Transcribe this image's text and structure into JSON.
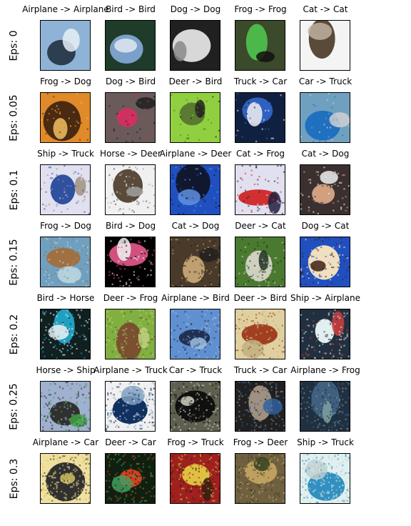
{
  "rows": [
    {
      "label": "Eps: 0",
      "cells": [
        {
          "title": "Airplane -> Airplane",
          "palette": [
            "#8fb3d6",
            "#2c3e50",
            "#e8eef5"
          ]
        },
        {
          "title": "Bird -> Bird",
          "palette": [
            "#1f3b2a",
            "#7ba0c9",
            "#e0e8f0"
          ]
        },
        {
          "title": "Dog -> Dog",
          "palette": [
            "#202020",
            "#d8d8d8",
            "#8a8a8a"
          ]
        },
        {
          "title": "Frog -> Frog",
          "palette": [
            "#3b4a2a",
            "#4db84a",
            "#101010"
          ]
        },
        {
          "title": "Cat -> Cat",
          "palette": [
            "#f4f4f4",
            "#5a4a3a",
            "#c0b0a0"
          ]
        }
      ]
    },
    {
      "label": "Eps: 0.05",
      "cells": [
        {
          "title": "Frog -> Dog",
          "palette": [
            "#e08a2a",
            "#4a2a10",
            "#f0c060"
          ]
        },
        {
          "title": "Dog -> Bird",
          "palette": [
            "#6a5a5a",
            "#d03060",
            "#202020"
          ]
        },
        {
          "title": "Deer -> Bird",
          "palette": [
            "#90d040",
            "#5a7a30",
            "#202020"
          ]
        },
        {
          "title": "Truck -> Car",
          "palette": [
            "#102040",
            "#3060c0",
            "#f0f0f0"
          ]
        },
        {
          "title": "Car -> Truck",
          "palette": [
            "#70a0c0",
            "#2070c0",
            "#d0d0d0"
          ]
        }
      ]
    },
    {
      "label": "Eps: 0.1",
      "cells": [
        {
          "title": "Ship -> Truck",
          "palette": [
            "#e0e0f0",
            "#3050a0",
            "#a09080"
          ]
        },
        {
          "title": "Horse -> Deer",
          "palette": [
            "#f0f0f0",
            "#5a4a3a",
            "#a0a0a0"
          ]
        },
        {
          "title": "Airplane -> Deer",
          "palette": [
            "#2050c0",
            "#101830",
            "#6090e0"
          ]
        },
        {
          "title": "Cat -> Frog",
          "palette": [
            "#e0e0f0",
            "#d03030",
            "#202040"
          ]
        },
        {
          "title": "Cat -> Dog",
          "palette": [
            "#3a3030",
            "#d0a080",
            "#f0f0f0"
          ]
        }
      ]
    },
    {
      "label": "Eps: 0.15",
      "cells": [
        {
          "title": "Frog -> Dog",
          "palette": [
            "#70a0c0",
            "#a07040",
            "#c0d8e0"
          ]
        },
        {
          "title": "Bird -> Dog",
          "palette": [
            "#000000",
            "#d05080",
            "#f0f0f0"
          ]
        },
        {
          "title": "Cat -> Dog",
          "palette": [
            "#4a3a2a",
            "#c0a070",
            "#202020"
          ]
        },
        {
          "title": "Deer -> Cat",
          "palette": [
            "#4a7a30",
            "#d0d0c0",
            "#203020"
          ]
        },
        {
          "title": "Dog -> Cat",
          "palette": [
            "#2050c0",
            "#f0e0c0",
            "#402010"
          ]
        }
      ]
    },
    {
      "label": "Eps: 0.2",
      "cells": [
        {
          "title": "Bird -> Horse",
          "palette": [
            "#102020",
            "#20a0c0",
            "#f0f0f0"
          ]
        },
        {
          "title": "Deer -> Frog",
          "palette": [
            "#80b040",
            "#7a5030",
            "#c0d080"
          ]
        },
        {
          "title": "Airplane -> Bird",
          "palette": [
            "#6090d0",
            "#203050",
            "#a0c0e0"
          ]
        },
        {
          "title": "Deer -> Bird",
          "palette": [
            "#e0d0a0",
            "#a04020",
            "#c0b080"
          ]
        },
        {
          "title": "Ship -> Airplane",
          "palette": [
            "#203040",
            "#e0f0f0",
            "#d04040"
          ]
        }
      ]
    },
    {
      "label": "Eps: 0.25",
      "cells": [
        {
          "title": "Horse -> Ship",
          "palette": [
            "#a0b0d0",
            "#303030",
            "#40a040"
          ]
        },
        {
          "title": "Airplane -> Truck",
          "palette": [
            "#f0f0f0",
            "#103060",
            "#80a0c0"
          ]
        },
        {
          "title": "Car -> Truck",
          "palette": [
            "#606050",
            "#101010",
            "#d0d0c0"
          ]
        },
        {
          "title": "Truck -> Car",
          "palette": [
            "#202020",
            "#a09080",
            "#3060a0"
          ]
        },
        {
          "title": "Airplane -> Frog",
          "palette": [
            "#203040",
            "#406080",
            "#80a0a0"
          ]
        }
      ]
    },
    {
      "label": "Eps: 0.3",
      "cells": [
        {
          "title": "Airplane -> Car",
          "palette": [
            "#f0e0a0",
            "#303030",
            "#d0c060"
          ]
        },
        {
          "title": "Deer -> Car",
          "palette": [
            "#102010",
            "#d04020",
            "#40a060"
          ]
        },
        {
          "title": "Frog -> Truck",
          "palette": [
            "#a02020",
            "#e0c040",
            "#302010"
          ]
        },
        {
          "title": "Frog -> Deer",
          "palette": [
            "#706040",
            "#c0a060",
            "#304020"
          ]
        },
        {
          "title": "Ship -> Truck",
          "palette": [
            "#e0f0f0",
            "#3090c0",
            "#c0d0d0"
          ]
        }
      ]
    }
  ]
}
